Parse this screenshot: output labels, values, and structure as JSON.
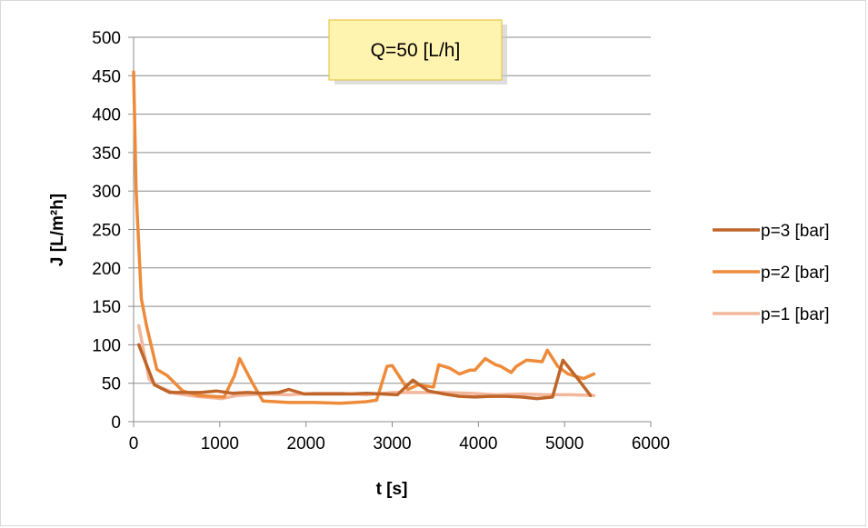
{
  "chart_data": {
    "type": "line",
    "title": "Q=50 [L/h]",
    "xlabel": "t [s]",
    "ylabel": "J [L/m²h]",
    "xlim": [
      0,
      6000
    ],
    "ylim": [
      0,
      500
    ],
    "x_ticks": [
      0,
      1000,
      2000,
      3000,
      4000,
      5000,
      6000
    ],
    "y_ticks": [
      0,
      50,
      100,
      150,
      200,
      250,
      300,
      350,
      400,
      450,
      500
    ],
    "grid": "horizontal",
    "legend_position": "right",
    "colors": {
      "p3": "#c0652a",
      "p2": "#ee8b3a",
      "p1": "#f3b79c"
    },
    "series": [
      {
        "name": "p=3 [bar]",
        "color": "#c0652a",
        "points": [
          [
            60,
            100
          ],
          [
            240,
            48
          ],
          [
            420,
            38
          ],
          [
            600,
            38
          ],
          [
            780,
            38
          ],
          [
            960,
            40
          ],
          [
            1140,
            37
          ],
          [
            1320,
            38
          ],
          [
            1500,
            37
          ],
          [
            1680,
            38
          ],
          [
            1800,
            42
          ],
          [
            1980,
            36
          ],
          [
            2160,
            36
          ],
          [
            2340,
            36
          ],
          [
            2520,
            36
          ],
          [
            2700,
            37
          ],
          [
            2880,
            36
          ],
          [
            3060,
            35
          ],
          [
            3240,
            54
          ],
          [
            3420,
            40
          ],
          [
            3600,
            36
          ],
          [
            3780,
            33
          ],
          [
            3960,
            32
          ],
          [
            4140,
            33
          ],
          [
            4320,
            33
          ],
          [
            4500,
            32
          ],
          [
            4680,
            30
          ],
          [
            4860,
            32
          ],
          [
            4980,
            80
          ],
          [
            5160,
            55
          ],
          [
            5300,
            34
          ]
        ]
      },
      {
        "name": "p=2 [bar]",
        "color": "#ee8b3a",
        "points": [
          [
            0,
            455
          ],
          [
            30,
            300
          ],
          [
            90,
            160
          ],
          [
            150,
            125
          ],
          [
            270,
            68
          ],
          [
            390,
            60
          ],
          [
            570,
            40
          ],
          [
            750,
            34
          ],
          [
            1050,
            32
          ],
          [
            1170,
            60
          ],
          [
            1230,
            82
          ],
          [
            1380,
            50
          ],
          [
            1500,
            27
          ],
          [
            1800,
            25
          ],
          [
            2100,
            25
          ],
          [
            2400,
            24
          ],
          [
            2700,
            26
          ],
          [
            2820,
            28
          ],
          [
            2940,
            72
          ],
          [
            3000,
            73
          ],
          [
            3180,
            42
          ],
          [
            3300,
            48
          ],
          [
            3420,
            46
          ],
          [
            3480,
            45
          ],
          [
            3540,
            74
          ],
          [
            3660,
            70
          ],
          [
            3780,
            62
          ],
          [
            3900,
            67
          ],
          [
            3960,
            67
          ],
          [
            4080,
            82
          ],
          [
            4200,
            74
          ],
          [
            4260,
            72
          ],
          [
            4380,
            64
          ],
          [
            4440,
            72
          ],
          [
            4560,
            80
          ],
          [
            4740,
            78
          ],
          [
            4800,
            93
          ],
          [
            4920,
            72
          ],
          [
            5040,
            62
          ],
          [
            5160,
            58
          ],
          [
            5220,
            56
          ],
          [
            5340,
            62
          ]
        ]
      },
      {
        "name": "p=1 [bar]",
        "color": "#f3b79c",
        "points": [
          [
            60,
            125
          ],
          [
            180,
            55
          ],
          [
            300,
            45
          ],
          [
            480,
            37
          ],
          [
            720,
            33
          ],
          [
            1020,
            30
          ],
          [
            1200,
            34
          ],
          [
            1500,
            36
          ],
          [
            1800,
            35
          ],
          [
            2100,
            37
          ],
          [
            2400,
            37
          ],
          [
            2700,
            35
          ],
          [
            3000,
            38
          ],
          [
            3300,
            38
          ],
          [
            3600,
            38
          ],
          [
            3900,
            37
          ],
          [
            4200,
            35
          ],
          [
            4500,
            36
          ],
          [
            4800,
            35
          ],
          [
            5100,
            35
          ],
          [
            5340,
            34
          ]
        ]
      }
    ]
  }
}
